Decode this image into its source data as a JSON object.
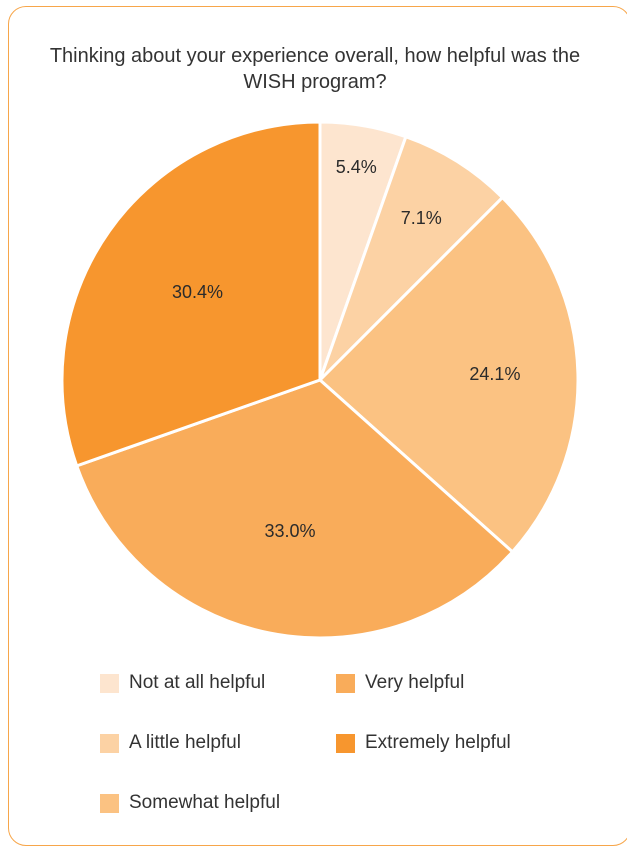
{
  "chart_data": {
    "type": "pie",
    "title": "Thinking about your experience overall, how helpful was the WISH program?",
    "categories": [
      "Not at all helpful",
      "A little helpful",
      "Somewhat helpful",
      "Very helpful",
      "Extremely helpful"
    ],
    "values": [
      5.4,
      7.1,
      24.1,
      33.0,
      30.4
    ],
    "value_labels": [
      "5.4%",
      "7.1%",
      "24.1%",
      "33.0%",
      "30.4%"
    ],
    "colors": [
      "#fde5cf",
      "#fcd2a4",
      "#fbc282",
      "#f9ac5a",
      "#f7962e"
    ],
    "legend_position": "bottom",
    "start_angle": "12 o'clock, clockwise"
  },
  "legend": {
    "items": [
      {
        "label": "Not at all helpful",
        "color": "#fde5cf"
      },
      {
        "label": "A little helpful",
        "color": "#fcd2a4"
      },
      {
        "label": "Somewhat helpful",
        "color": "#fbc282"
      },
      {
        "label": "Very helpful",
        "color": "#f9ac5a"
      },
      {
        "label": "Extremely helpful",
        "color": "#f7962e"
      }
    ]
  },
  "colors": {
    "border": "#f7a64a",
    "text": "#333333"
  }
}
